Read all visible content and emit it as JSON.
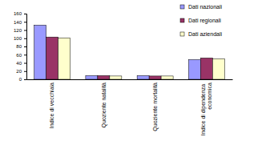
{
  "chart_data": {
    "type": "bar",
    "categories": [
      "Indice di vecchiaia",
      "Quoziente natalità",
      "Quoziente mortalità",
      "Indice di dipendenza economica"
    ],
    "series": [
      {
        "name": "Dati nazionali",
        "color": "#9999ff",
        "values": [
          132,
          9,
          9,
          48
        ]
      },
      {
        "name": "Dati regionali",
        "color": "#993366",
        "values": [
          103,
          9,
          8,
          52
        ]
      },
      {
        "name": "Dati aziendali",
        "color": "#ffffcc",
        "values": [
          101,
          8,
          8,
          50
        ]
      }
    ],
    "ylim": [
      0,
      160
    ],
    "yticks": [
      0,
      20,
      40,
      60,
      80,
      100,
      120,
      140,
      160
    ],
    "grid": false,
    "legend": "top right"
  }
}
